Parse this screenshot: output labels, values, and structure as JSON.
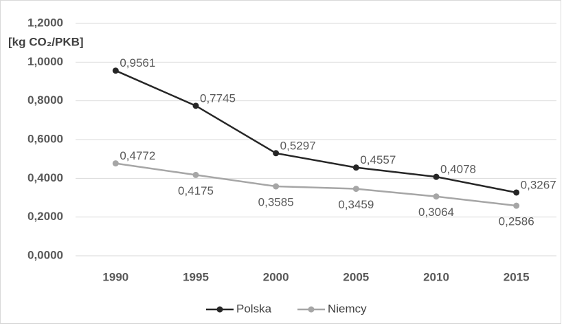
{
  "chart_data": {
    "type": "line",
    "ylabel": "[kg CO₂/PKB]",
    "categories": [
      "1990",
      "1995",
      "2000",
      "2005",
      "2010",
      "2015"
    ],
    "series": [
      {
        "name": "Polska",
        "color": "#262626",
        "values": [
          0.9561,
          0.7745,
          0.5297,
          0.4557,
          0.4078,
          0.3267
        ],
        "value_labels": [
          "0,9561",
          "0,7745",
          "0,5297",
          "0,4557",
          "0,4078",
          "0,3267"
        ]
      },
      {
        "name": "Niemcy",
        "color": "#a6a6a6",
        "values": [
          0.4772,
          0.4175,
          0.3585,
          0.3459,
          0.3064,
          0.2586
        ],
        "value_labels": [
          "0,4772",
          "0,4175",
          "0,3585",
          "0,3459",
          "0,3064",
          "0,2586"
        ]
      }
    ],
    "ylim": [
      0,
      1.2
    ],
    "yticks": [
      {
        "value": 0,
        "label": "0,0000"
      },
      {
        "value": 0.2,
        "label": "0,2000"
      },
      {
        "value": 0.4,
        "label": "0,4000"
      },
      {
        "value": 0.6,
        "label": "0,6000"
      },
      {
        "value": 0.8,
        "label": "0,8000"
      },
      {
        "value": 1.0,
        "label": "1,0000"
      },
      {
        "value": 1.2,
        "label": "1,2000"
      }
    ],
    "grid": true,
    "legend": "bottom"
  }
}
